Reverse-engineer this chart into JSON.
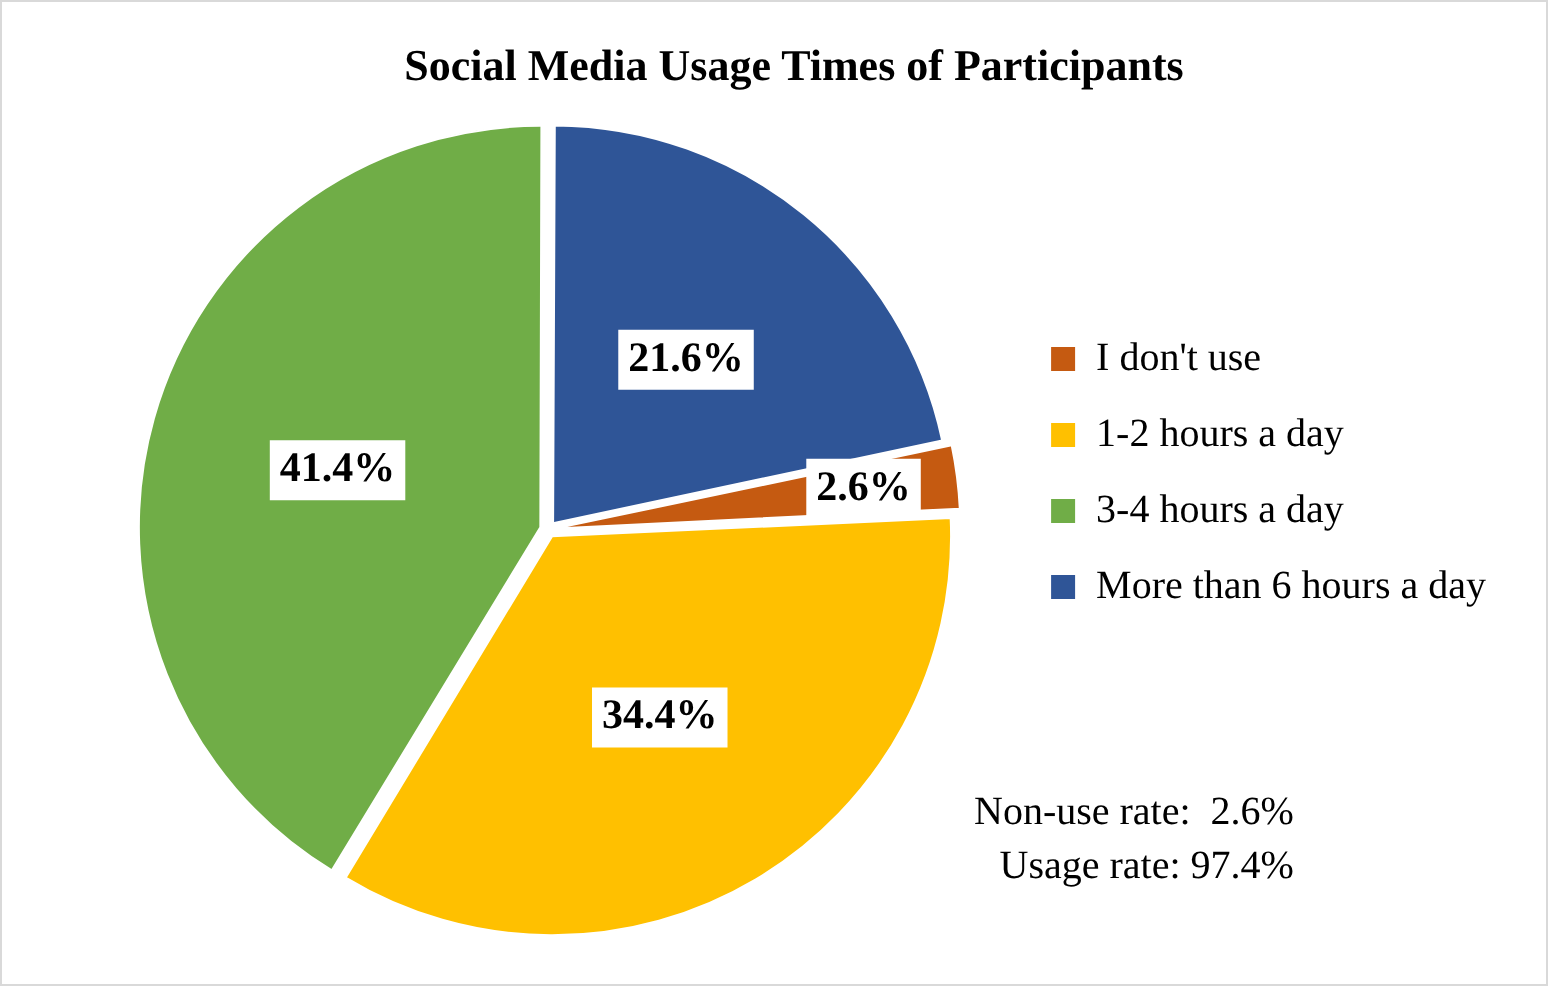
{
  "chart_data": {
    "type": "pie",
    "title": "Social Media Usage Times of Participants",
    "categories": [
      "I don't use",
      "1-2 hours a day",
      "3-4 hours a day",
      "More than 6 hours a day"
    ],
    "values": [
      2.6,
      34.4,
      41.4,
      21.6
    ],
    "colors": [
      "#c55a11",
      "#ffc000",
      "#70ad47",
      "#2f5597"
    ],
    "value_labels": [
      "2.6%",
      "34.4%",
      "41.4%",
      "21.6%"
    ],
    "legend": "right",
    "annotations": [
      "Non-use rate:  2.6%",
      "Usage rate: 97.4%"
    ]
  }
}
